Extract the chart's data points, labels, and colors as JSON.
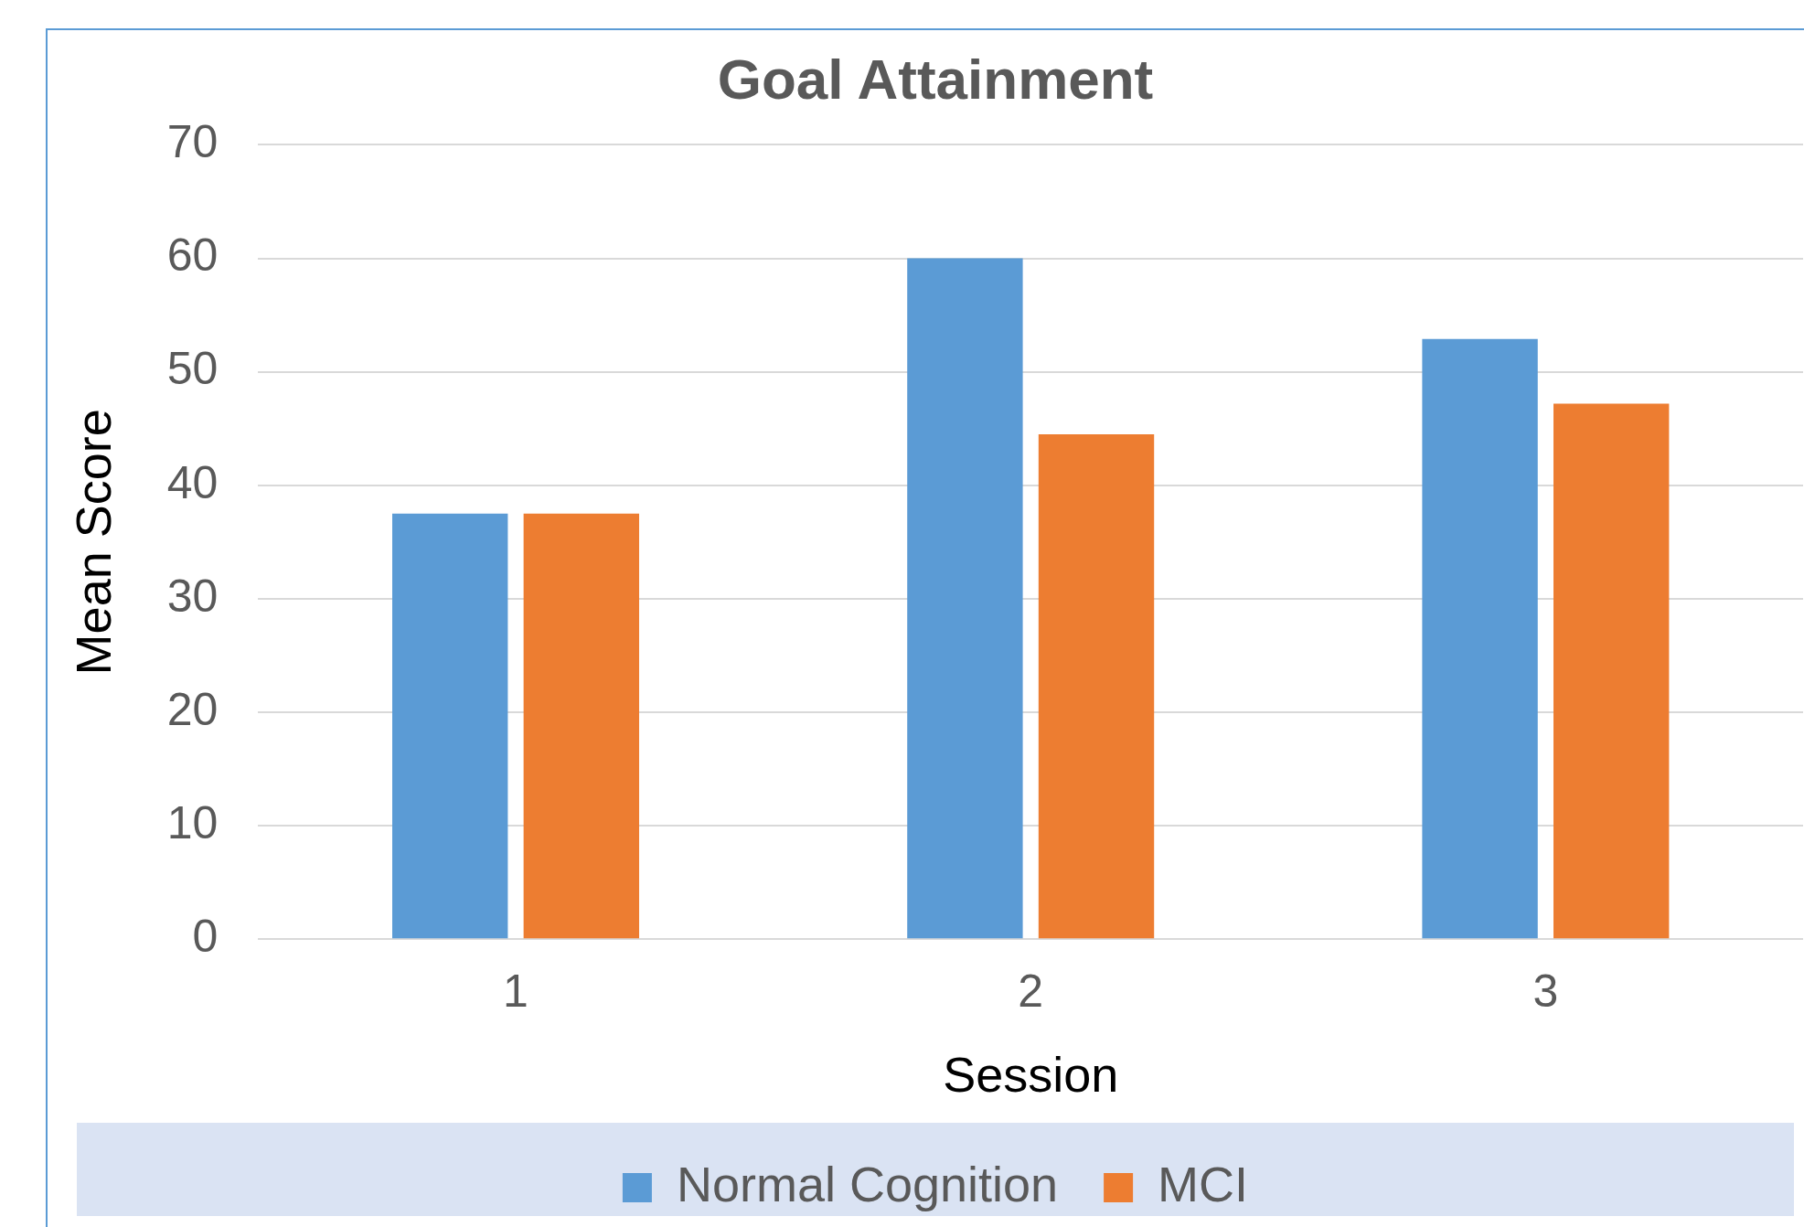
{
  "chart_data": {
    "type": "bar",
    "title": "Goal Attainment",
    "xlabel": "Session",
    "ylabel": "Mean Score",
    "categories": [
      "1",
      "2",
      "3"
    ],
    "series": [
      {
        "name": "Normal Cognition",
        "color": "#5b9bd5",
        "values": [
          37.5,
          60,
          52.9
        ]
      },
      {
        "name": "MCI",
        "color": "#ed7d31",
        "values": [
          37.5,
          44.5,
          47.2
        ]
      }
    ],
    "ylim": [
      0,
      70
    ],
    "yticks": [
      0,
      10,
      20,
      30,
      40,
      50,
      60,
      70
    ],
    "grid": "y",
    "legend": "bottom"
  }
}
